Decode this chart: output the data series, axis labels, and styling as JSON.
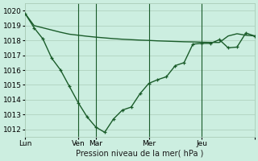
{
  "title": "Pression niveau de la mer( hPa )",
  "bg_color": "#cceee0",
  "grid_color": "#aaccb8",
  "line_color": "#1a5c2a",
  "ylim": [
    1011.5,
    1020.5
  ],
  "yticks": [
    1012,
    1013,
    1014,
    1015,
    1016,
    1017,
    1018,
    1019,
    1020
  ],
  "xtick_positions": [
    0,
    3,
    4,
    7,
    10,
    13
  ],
  "xtick_labels": [
    "Lun",
    "Ven",
    "Mar",
    "Mer",
    "Jeu",
    ""
  ],
  "vline_positions": [
    3,
    4,
    7,
    10
  ],
  "xlim": [
    0,
    13
  ],
  "line1_x": [
    0,
    0.5,
    1.0,
    1.5,
    2.0,
    2.5,
    3.0,
    3.5,
    4.0,
    4.5,
    5.0,
    5.5,
    6.0,
    6.5,
    7.0,
    7.5,
    8.0,
    8.5,
    9.0,
    9.5,
    10.0,
    10.5,
    11.0,
    11.5,
    12.0,
    12.5,
    13.0
  ],
  "line1_y": [
    1019.8,
    1019.0,
    1018.85,
    1018.7,
    1018.55,
    1018.42,
    1018.35,
    1018.28,
    1018.22,
    1018.17,
    1018.12,
    1018.08,
    1018.05,
    1018.02,
    1018.0,
    1017.97,
    1017.95,
    1017.93,
    1017.91,
    1017.9,
    1017.88,
    1017.87,
    1017.86,
    1018.3,
    1018.45,
    1018.35,
    1018.3
  ],
  "line2_x": [
    0,
    0.5,
    1.0,
    1.5,
    2.0,
    2.5,
    3.0,
    3.5,
    4.0,
    4.5,
    5.0,
    5.5,
    6.0,
    6.5,
    7.0,
    7.5,
    8.0,
    8.5,
    9.0,
    9.5,
    10.0,
    10.5,
    11.0,
    11.5,
    12.0,
    12.5,
    13.0
  ],
  "line2_y": [
    1019.8,
    1018.85,
    1018.1,
    1016.8,
    1016.0,
    1014.9,
    1013.8,
    1012.85,
    1012.15,
    1011.8,
    1012.7,
    1013.3,
    1013.5,
    1014.4,
    1015.1,
    1015.35,
    1015.55,
    1016.3,
    1016.5,
    1017.75,
    1017.8,
    1017.8,
    1018.05,
    1017.5,
    1017.55,
    1018.5,
    1018.3
  ],
  "fontsize_label": 7,
  "fontsize_tick": 6.5
}
